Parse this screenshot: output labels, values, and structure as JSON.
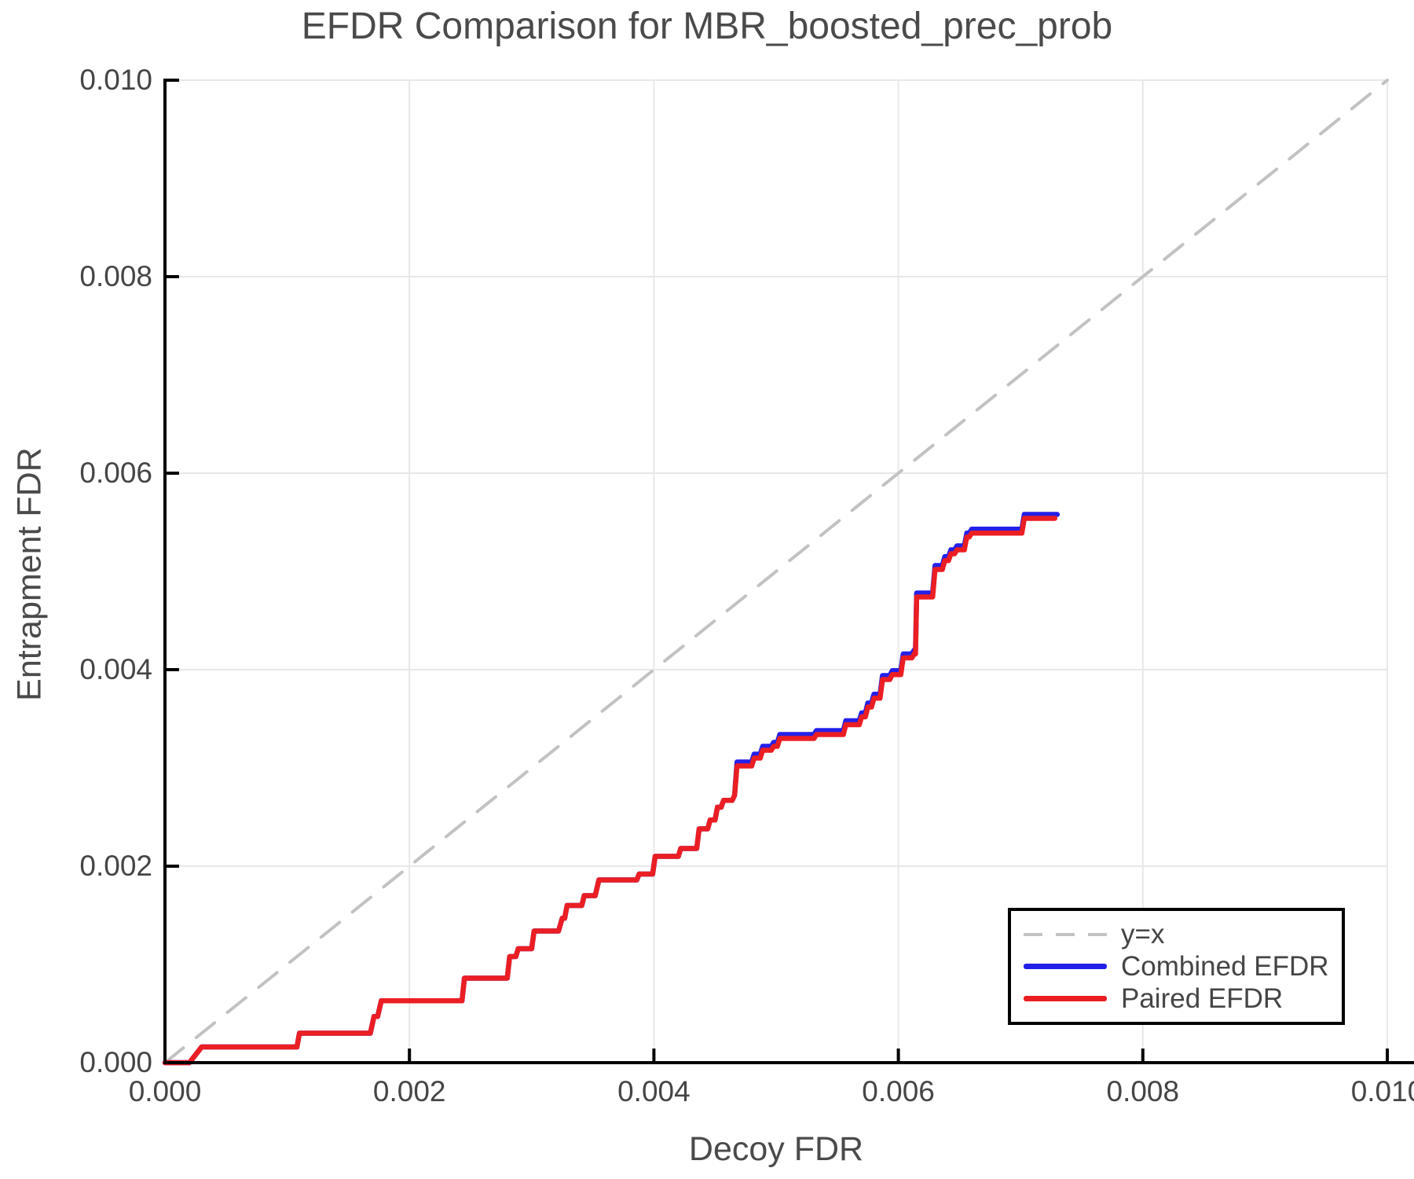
{
  "colors": {
    "background": "#ffffff",
    "title": "#4a4a4a",
    "tick": "#454545",
    "grid": "#e8e8e8",
    "spine": "#000000",
    "diagonal": "#c2c2c2",
    "combined": "#2420e9",
    "paired": "#eb1e23",
    "legend_border": "#000000"
  },
  "chart_data": {
    "type": "line",
    "title": "EFDR Comparison for MBR_boosted_prec_prob",
    "xlabel": "Decoy FDR",
    "ylabel": "Entrapment FDR",
    "xlim": [
      0.0,
      0.01
    ],
    "ylim": [
      0.0,
      0.01
    ],
    "grid": true,
    "xticks": [
      0.0,
      0.002,
      0.004,
      0.006,
      0.008,
      0.01
    ],
    "xtick_labels": [
      "0.000",
      "0.002",
      "0.004",
      "0.006",
      "0.008",
      "0.010"
    ],
    "yticks": [
      0.0,
      0.002,
      0.004,
      0.006,
      0.008,
      0.01
    ],
    "ytick_labels": [
      "0.000",
      "0.002",
      "0.004",
      "0.006",
      "0.008",
      "0.010"
    ],
    "legend": {
      "position": "bottom-right"
    },
    "series": [
      {
        "name": "y=x",
        "style": "dashed",
        "color_key": "diagonal",
        "points": [
          [
            0.0,
            0.0
          ],
          [
            0.01,
            0.01
          ]
        ]
      },
      {
        "name": "Combined EFDR",
        "style": "solid",
        "color_key": "combined",
        "points": [
          [
            0.0,
            0.0
          ],
          [
            0.0002,
            0.0
          ],
          [
            0.0003,
            0.00016
          ],
          [
            0.00108,
            0.00016
          ],
          [
            0.0011,
            0.0003
          ],
          [
            0.00168,
            0.0003
          ],
          [
            0.00171,
            0.00047
          ],
          [
            0.00174,
            0.00047
          ],
          [
            0.00177,
            0.00063
          ],
          [
            0.00243,
            0.00063
          ],
          [
            0.00245,
            0.00086
          ],
          [
            0.0028,
            0.00086
          ],
          [
            0.00282,
            0.00108
          ],
          [
            0.00287,
            0.00108
          ],
          [
            0.00289,
            0.00116
          ],
          [
            0.003,
            0.00116
          ],
          [
            0.00302,
            0.00134
          ],
          [
            0.00322,
            0.00134
          ],
          [
            0.00325,
            0.00147
          ],
          [
            0.00327,
            0.00147
          ],
          [
            0.00329,
            0.0016
          ],
          [
            0.00341,
            0.0016
          ],
          [
            0.00343,
            0.0017
          ],
          [
            0.00352,
            0.0017
          ],
          [
            0.00355,
            0.00186
          ],
          [
            0.00386,
            0.00186
          ],
          [
            0.00388,
            0.00192
          ],
          [
            0.00399,
            0.00192
          ],
          [
            0.00401,
            0.0021
          ],
          [
            0.0042,
            0.0021
          ],
          [
            0.00422,
            0.00218
          ],
          [
            0.00435,
            0.00218
          ],
          [
            0.00437,
            0.00238
          ],
          [
            0.00444,
            0.00238
          ],
          [
            0.00446,
            0.00247
          ],
          [
            0.0045,
            0.00247
          ],
          [
            0.00452,
            0.0026
          ],
          [
            0.00455,
            0.0026
          ],
          [
            0.00457,
            0.00267
          ],
          [
            0.00464,
            0.00267
          ],
          [
            0.00466,
            0.00272
          ],
          [
            0.00468,
            0.00306
          ],
          [
            0.0048,
            0.00306
          ],
          [
            0.00482,
            0.00314
          ],
          [
            0.00487,
            0.00314
          ],
          [
            0.00489,
            0.00322
          ],
          [
            0.00496,
            0.00322
          ],
          [
            0.00498,
            0.00326
          ],
          [
            0.00501,
            0.00326
          ],
          [
            0.00503,
            0.00334
          ],
          [
            0.00531,
            0.00334
          ],
          [
            0.00533,
            0.00338
          ],
          [
            0.00555,
            0.00338
          ],
          [
            0.00557,
            0.00348
          ],
          [
            0.00568,
            0.00348
          ],
          [
            0.0057,
            0.00356
          ],
          [
            0.00573,
            0.00356
          ],
          [
            0.00575,
            0.00366
          ],
          [
            0.00578,
            0.00366
          ],
          [
            0.0058,
            0.00375
          ],
          [
            0.00585,
            0.00375
          ],
          [
            0.00587,
            0.00394
          ],
          [
            0.00593,
            0.00394
          ],
          [
            0.00595,
            0.00399
          ],
          [
            0.00602,
            0.00399
          ],
          [
            0.00604,
            0.00416
          ],
          [
            0.00611,
            0.00416
          ],
          [
            0.00613,
            0.0042
          ],
          [
            0.00614,
            0.0042
          ],
          [
            0.00615,
            0.00478
          ],
          [
            0.00628,
            0.00478
          ],
          [
            0.0063,
            0.00506
          ],
          [
            0.00636,
            0.00506
          ],
          [
            0.00638,
            0.00515
          ],
          [
            0.00641,
            0.00515
          ],
          [
            0.00643,
            0.00522
          ],
          [
            0.00646,
            0.00522
          ],
          [
            0.00648,
            0.00526
          ],
          [
            0.00654,
            0.00526
          ],
          [
            0.00656,
            0.00539
          ],
          [
            0.00658,
            0.00539
          ],
          [
            0.0066,
            0.00543
          ],
          [
            0.00701,
            0.00543
          ],
          [
            0.00703,
            0.00558
          ],
          [
            0.0073,
            0.00558
          ]
        ]
      },
      {
        "name": "Paired EFDR",
        "style": "solid",
        "color_key": "paired",
        "points": [
          [
            0.0,
            0.0
          ],
          [
            0.0002,
            0.0
          ],
          [
            0.0003,
            0.00016
          ],
          [
            0.00108,
            0.00016
          ],
          [
            0.0011,
            0.0003
          ],
          [
            0.00168,
            0.0003
          ],
          [
            0.00171,
            0.00047
          ],
          [
            0.00174,
            0.00047
          ],
          [
            0.00177,
            0.00063
          ],
          [
            0.00243,
            0.00063
          ],
          [
            0.00245,
            0.00086
          ],
          [
            0.0028,
            0.00086
          ],
          [
            0.00282,
            0.00108
          ],
          [
            0.00287,
            0.00108
          ],
          [
            0.00289,
            0.00116
          ],
          [
            0.003,
            0.00116
          ],
          [
            0.00302,
            0.00134
          ],
          [
            0.00322,
            0.00134
          ],
          [
            0.00325,
            0.00147
          ],
          [
            0.00327,
            0.00147
          ],
          [
            0.00329,
            0.0016
          ],
          [
            0.00341,
            0.0016
          ],
          [
            0.00343,
            0.0017
          ],
          [
            0.00352,
            0.0017
          ],
          [
            0.00355,
            0.00186
          ],
          [
            0.00386,
            0.00186
          ],
          [
            0.00388,
            0.00192
          ],
          [
            0.00399,
            0.00192
          ],
          [
            0.00401,
            0.0021
          ],
          [
            0.0042,
            0.0021
          ],
          [
            0.00422,
            0.00218
          ],
          [
            0.00435,
            0.00218
          ],
          [
            0.00437,
            0.00238
          ],
          [
            0.00444,
            0.00238
          ],
          [
            0.00446,
            0.00247
          ],
          [
            0.0045,
            0.00247
          ],
          [
            0.00452,
            0.0026
          ],
          [
            0.00455,
            0.0026
          ],
          [
            0.00457,
            0.00267
          ],
          [
            0.00464,
            0.00267
          ],
          [
            0.00466,
            0.00272
          ],
          [
            0.00468,
            0.00302
          ],
          [
            0.0048,
            0.00302
          ],
          [
            0.00482,
            0.0031
          ],
          [
            0.00487,
            0.0031
          ],
          [
            0.00489,
            0.00318
          ],
          [
            0.00496,
            0.00318
          ],
          [
            0.00498,
            0.00322
          ],
          [
            0.00501,
            0.00322
          ],
          [
            0.00503,
            0.0033
          ],
          [
            0.00531,
            0.0033
          ],
          [
            0.00533,
            0.00334
          ],
          [
            0.00555,
            0.00334
          ],
          [
            0.00557,
            0.00344
          ],
          [
            0.00568,
            0.00344
          ],
          [
            0.0057,
            0.00352
          ],
          [
            0.00573,
            0.00352
          ],
          [
            0.00575,
            0.00362
          ],
          [
            0.00578,
            0.00362
          ],
          [
            0.0058,
            0.00371
          ],
          [
            0.00585,
            0.00371
          ],
          [
            0.00587,
            0.0039
          ],
          [
            0.00593,
            0.0039
          ],
          [
            0.00595,
            0.00395
          ],
          [
            0.00602,
            0.00395
          ],
          [
            0.00604,
            0.00412
          ],
          [
            0.00611,
            0.00412
          ],
          [
            0.00613,
            0.00416
          ],
          [
            0.00614,
            0.00416
          ],
          [
            0.00615,
            0.00474
          ],
          [
            0.00628,
            0.00474
          ],
          [
            0.0063,
            0.00502
          ],
          [
            0.00636,
            0.00502
          ],
          [
            0.00638,
            0.00511
          ],
          [
            0.00641,
            0.00511
          ],
          [
            0.00643,
            0.00518
          ],
          [
            0.00646,
            0.00518
          ],
          [
            0.00648,
            0.00522
          ],
          [
            0.00654,
            0.00522
          ],
          [
            0.00656,
            0.00535
          ],
          [
            0.00658,
            0.00535
          ],
          [
            0.0066,
            0.00539
          ],
          [
            0.00701,
            0.00539
          ],
          [
            0.00703,
            0.00554
          ],
          [
            0.00728,
            0.00554
          ]
        ]
      }
    ]
  }
}
